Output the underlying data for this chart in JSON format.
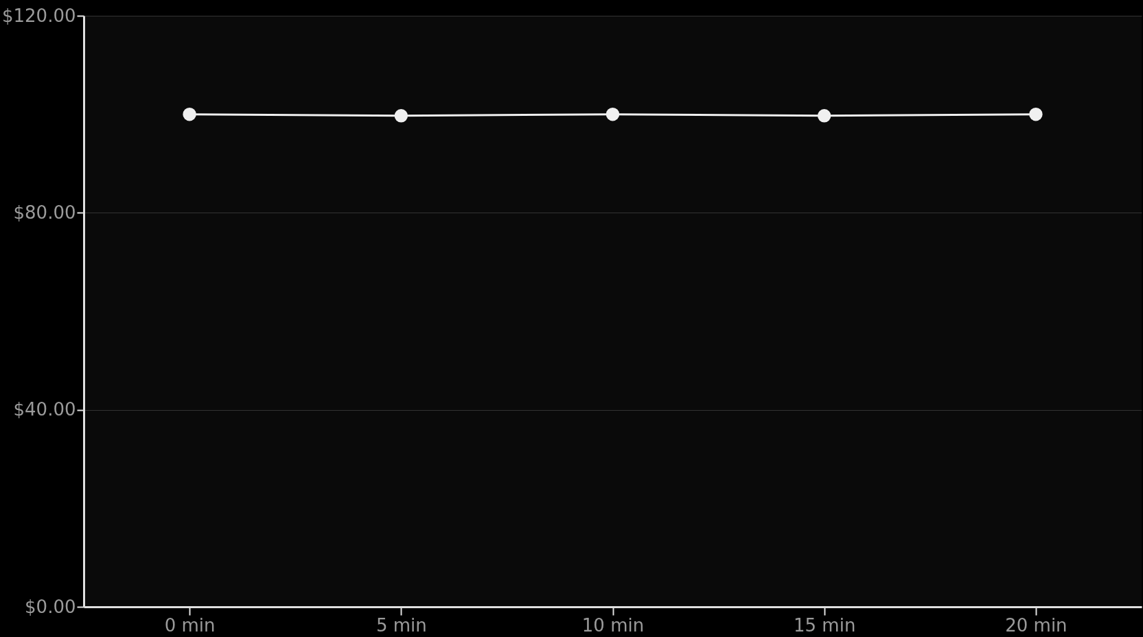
{
  "chart_data": {
    "type": "line",
    "x": [
      0,
      5,
      10,
      15,
      20
    ],
    "series": [
      {
        "color": "#f0f0f0",
        "values": [
          100,
          99.7,
          100,
          99.7,
          100
        ]
      }
    ],
    "xlim": [
      -2.5,
      22.5
    ],
    "xticks": [
      {
        "value": 0,
        "label": "0 min"
      },
      {
        "value": 5,
        "label": "5 min"
      },
      {
        "value": 10,
        "label": "10 min"
      },
      {
        "value": 15,
        "label": "15 min"
      },
      {
        "value": 20,
        "label": "20 min"
      }
    ],
    "ylim": [
      0,
      120
    ],
    "yticks": [
      {
        "value": 0,
        "label": "$0.00"
      },
      {
        "value": 40,
        "label": "$40.00"
      },
      {
        "value": 80,
        "label": "$80.00"
      },
      {
        "value": 120,
        "label": "$120.00"
      }
    ],
    "grid": "y",
    "marker": "circle",
    "line_style": "solid"
  }
}
